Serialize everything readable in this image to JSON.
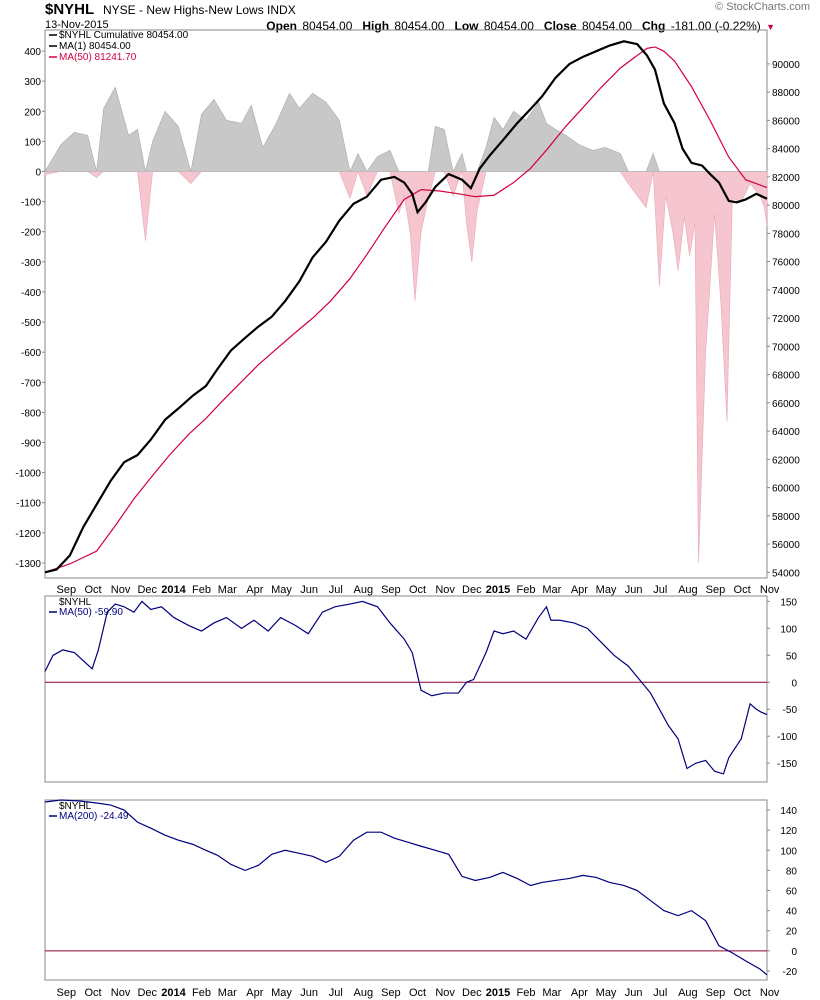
{
  "header": {
    "symbol": "$NYHL",
    "name": "NYSE - New Highs-New Lows INDX",
    "date": "13-Nov-2015",
    "watermark": "© StockCharts.com",
    "open_label": "Open",
    "open": "80454.00",
    "high_label": "High",
    "high": "80454.00",
    "low_label": "Low",
    "low": "80454.00",
    "close_label": "Close",
    "close": "80454.00",
    "chg_label": "Chg",
    "chg": "-181.00 (-0.22%)"
  },
  "colors": {
    "black_line": "#000000",
    "red_line": "#d4003c",
    "blue_line": "#00007f",
    "zero_line": "#8b0033",
    "pos_fill": "#c8c8c8",
    "neg_fill": "#f5c6cf",
    "down_arrow": "#d4003c"
  },
  "x_axis": {
    "labels": [
      "Sep",
      "Oct",
      "Nov",
      "Dec",
      "2014",
      "Feb",
      "Mar",
      "Apr",
      "May",
      "Jun",
      "Jul",
      "Aug",
      "Sep",
      "Oct",
      "Nov",
      "Dec",
      "2015",
      "Feb",
      "Mar",
      "Apr",
      "May",
      "Jun",
      "Jul",
      "Aug",
      "Sep",
      "Oct",
      "Nov"
    ],
    "bold_labels": [
      "2014",
      "2015"
    ],
    "start": "2013-08-23",
    "end": "2015-11-13"
  },
  "chart_data": [
    {
      "type": "line",
      "panel": "main",
      "legend": [
        "$NYHL Cumulative 80454.00",
        "MA(1) 80454.00",
        "MA(50) 81241.70"
      ],
      "ylim_left": [
        -1350,
        470
      ],
      "ylim_right": [
        53600,
        92400
      ],
      "yticks_left": [
        -1300,
        -1200,
        -1100,
        -1000,
        -900,
        -800,
        -700,
        -600,
        -500,
        -400,
        -300,
        -200,
        -100,
        0,
        100,
        200,
        300,
        400
      ],
      "yticks_right": [
        54000,
        56000,
        58000,
        60000,
        62000,
        64000,
        66000,
        68000,
        70000,
        72000,
        74000,
        76000,
        78000,
        80000,
        82000,
        84000,
        86000,
        88000,
        90000
      ],
      "series": [
        {
          "name": "$NYHL Cumulative",
          "axis": "right",
          "x": [
            "2013-08-23",
            "2013-09-05",
            "2013-09-20",
            "2013-10-05",
            "2013-10-20",
            "2013-11-05",
            "2013-11-20",
            "2013-12-05",
            "2013-12-20",
            "2014-01-05",
            "2014-01-20",
            "2014-02-05",
            "2014-02-20",
            "2014-03-05",
            "2014-03-20",
            "2014-04-05",
            "2014-04-20",
            "2014-05-05",
            "2014-05-20",
            "2014-06-05",
            "2014-06-20",
            "2014-07-05",
            "2014-07-20",
            "2014-08-05",
            "2014-08-20",
            "2014-09-05",
            "2014-09-20",
            "2014-10-01",
            "2014-10-10",
            "2014-10-16",
            "2014-10-25",
            "2014-11-05",
            "2014-11-20",
            "2014-12-05",
            "2014-12-15",
            "2014-12-25",
            "2015-01-05",
            "2015-01-20",
            "2015-02-05",
            "2015-02-20",
            "2015-03-05",
            "2015-03-20",
            "2015-04-05",
            "2015-04-20",
            "2015-05-05",
            "2015-05-20",
            "2015-06-05",
            "2015-06-20",
            "2015-07-01",
            "2015-07-10",
            "2015-07-20",
            "2015-08-01",
            "2015-08-10",
            "2015-08-20",
            "2015-09-01",
            "2015-09-10",
            "2015-09-20",
            "2015-10-01",
            "2015-10-10",
            "2015-10-20",
            "2015-11-01",
            "2015-11-13"
          ],
          "y": [
            54000,
            54200,
            55200,
            57200,
            58800,
            60500,
            61800,
            62300,
            63400,
            64800,
            65600,
            66500,
            67200,
            68400,
            69700,
            70600,
            71400,
            72100,
            73200,
            74600,
            76300,
            77400,
            78900,
            80100,
            80600,
            81800,
            82000,
            81600,
            80800,
            79500,
            80200,
            81300,
            82200,
            81800,
            81200,
            82600,
            83500,
            84600,
            85800,
            86800,
            87700,
            89000,
            90000,
            90500,
            90900,
            91300,
            91600,
            91400,
            90600,
            89600,
            87200,
            85800,
            84000,
            83000,
            82800,
            82200,
            81600,
            80300,
            80200,
            80400,
            80800,
            80454
          ]
        },
        {
          "name": "MA(50)",
          "axis": "right",
          "x": [
            "2013-08-23",
            "2013-09-20",
            "2013-10-20",
            "2013-11-10",
            "2013-12-01",
            "2013-12-20",
            "2014-01-10",
            "2014-02-01",
            "2014-02-20",
            "2014-03-10",
            "2014-04-01",
            "2014-04-20",
            "2014-05-10",
            "2014-06-01",
            "2014-06-20",
            "2014-07-10",
            "2014-08-01",
            "2014-08-20",
            "2014-09-10",
            "2014-10-01",
            "2014-10-20",
            "2014-11-10",
            "2014-12-01",
            "2014-12-20",
            "2015-01-10",
            "2015-02-01",
            "2015-02-20",
            "2015-03-10",
            "2015-04-01",
            "2015-04-20",
            "2015-05-10",
            "2015-06-01",
            "2015-06-20",
            "2015-07-01",
            "2015-07-10",
            "2015-07-20",
            "2015-08-01",
            "2015-08-20",
            "2015-09-10",
            "2015-10-01",
            "2015-10-20",
            "2015-11-13"
          ],
          "y": [
            54000,
            54600,
            55500,
            57300,
            59200,
            60700,
            62300,
            63800,
            64900,
            66100,
            67500,
            68700,
            69800,
            71000,
            72000,
            73200,
            74800,
            76500,
            78500,
            80400,
            81100,
            81000,
            80800,
            80600,
            80700,
            81600,
            82600,
            83900,
            85600,
            86900,
            88300,
            89700,
            90600,
            91100,
            91200,
            90900,
            90200,
            88400,
            86000,
            83400,
            81800,
            81242
          ]
        }
      ],
      "histogram": {
        "name": "$NYHL",
        "axis": "left",
        "x": [
          "2013-08-23",
          "2013-09-10",
          "2013-09-25",
          "2013-10-10",
          "2013-10-20",
          "2013-10-28",
          "2013-11-10",
          "2013-11-25",
          "2013-12-05",
          "2013-12-14",
          "2013-12-22",
          "2014-01-05",
          "2014-01-20",
          "2014-02-03",
          "2014-02-15",
          "2014-03-01",
          "2014-03-15",
          "2014-04-01",
          "2014-04-12",
          "2014-04-25",
          "2014-05-10",
          "2014-05-25",
          "2014-06-05",
          "2014-06-20",
          "2014-07-05",
          "2014-07-20",
          "2014-08-01",
          "2014-08-10",
          "2014-08-20",
          "2014-09-01",
          "2014-09-15",
          "2014-09-25",
          "2014-10-01",
          "2014-10-08",
          "2014-10-13",
          "2014-10-20",
          "2014-10-28",
          "2014-11-05",
          "2014-11-15",
          "2014-11-25",
          "2014-12-05",
          "2014-12-10",
          "2014-12-16",
          "2014-12-22",
          "2015-01-01",
          "2015-01-10",
          "2015-01-20",
          "2015-02-01",
          "2015-02-15",
          "2015-03-01",
          "2015-03-10",
          "2015-03-20",
          "2015-04-01",
          "2015-04-15",
          "2015-05-01",
          "2015-05-15",
          "2015-06-01",
          "2015-06-10",
          "2015-06-20",
          "2015-06-30",
          "2015-07-08",
          "2015-07-15",
          "2015-07-22",
          "2015-07-30",
          "2015-08-05",
          "2015-08-12",
          "2015-08-18",
          "2015-08-24",
          "2015-08-28",
          "2015-09-05",
          "2015-09-15",
          "2015-09-22",
          "2015-09-29",
          "2015-10-05",
          "2015-10-15",
          "2015-10-25",
          "2015-11-05",
          "2015-11-10",
          "2015-11-13"
        ],
        "y": [
          -10,
          90,
          130,
          120,
          -20,
          210,
          280,
          120,
          140,
          -230,
          100,
          200,
          150,
          -40,
          190,
          240,
          170,
          160,
          220,
          80,
          160,
          260,
          210,
          260,
          230,
          170,
          -90,
          60,
          -80,
          50,
          70,
          -140,
          -80,
          -210,
          -430,
          -200,
          -90,
          150,
          140,
          -80,
          60,
          -170,
          -300,
          -130,
          80,
          180,
          140,
          200,
          170,
          230,
          160,
          140,
          120,
          90,
          70,
          80,
          60,
          -40,
          -80,
          -120,
          60,
          -380,
          -80,
          -200,
          -330,
          -150,
          -280,
          -170,
          -1300,
          -600,
          -140,
          -430,
          -830,
          -90,
          -100,
          -40,
          -80,
          -120,
          -181
        ]
      }
    },
    {
      "type": "line",
      "panel": "middle",
      "legend_title": "$NYHL",
      "legend": [
        "MA(50) -59.90"
      ],
      "ylim": [
        -185,
        160
      ],
      "yticks": [
        -150,
        -100,
        -50,
        0,
        50,
        100,
        150
      ],
      "series": [
        {
          "name": "MA(50)",
          "x": [
            "2013-08-23",
            "2013-09-01",
            "2013-09-12",
            "2013-09-25",
            "2013-10-05",
            "2013-10-15",
            "2013-10-22",
            "2013-11-01",
            "2013-11-10",
            "2013-11-20",
            "2013-12-01",
            "2013-12-10",
            "2013-12-20",
            "2014-01-01",
            "2014-01-15",
            "2014-02-01",
            "2014-02-15",
            "2014-03-01",
            "2014-03-15",
            "2014-04-01",
            "2014-04-15",
            "2014-05-01",
            "2014-05-15",
            "2014-06-01",
            "2014-06-15",
            "2014-07-01",
            "2014-07-15",
            "2014-08-01",
            "2014-08-15",
            "2014-09-01",
            "2014-09-15",
            "2014-10-01",
            "2014-10-10",
            "2014-10-20",
            "2014-11-01",
            "2014-11-15",
            "2014-12-01",
            "2014-12-10",
            "2014-12-18",
            "2015-01-01",
            "2015-01-10",
            "2015-01-20",
            "2015-02-01",
            "2015-02-15",
            "2015-03-01",
            "2015-03-10",
            "2015-03-15",
            "2015-03-25",
            "2015-04-10",
            "2015-04-25",
            "2015-05-10",
            "2015-05-25",
            "2015-06-10",
            "2015-06-25",
            "2015-07-05",
            "2015-07-15",
            "2015-07-25",
            "2015-08-05",
            "2015-08-15",
            "2015-08-25",
            "2015-09-05",
            "2015-09-15",
            "2015-09-25",
            "2015-10-01",
            "2015-10-05",
            "2015-10-15",
            "2015-10-25",
            "2015-11-01",
            "2015-11-06",
            "2015-11-13"
          ],
          "y": [
            20,
            50,
            60,
            55,
            40,
            25,
            60,
            130,
            145,
            140,
            130,
            150,
            135,
            140,
            120,
            105,
            95,
            110,
            120,
            100,
            115,
            95,
            120,
            105,
            90,
            130,
            140,
            145,
            150,
            140,
            110,
            80,
            55,
            -15,
            -25,
            -20,
            -20,
            0,
            5,
            55,
            95,
            90,
            95,
            80,
            120,
            140,
            115,
            115,
            110,
            100,
            75,
            50,
            30,
            0,
            -20,
            -50,
            -80,
            -105,
            -160,
            -150,
            -145,
            -165,
            -170,
            -140,
            -130,
            -105,
            -40,
            -50,
            -55,
            -60
          ]
        }
      ]
    },
    {
      "type": "line",
      "panel": "bottom",
      "legend_title": "$NYHL",
      "legend": [
        "MA(200) -24.49"
      ],
      "ylim": [
        -29,
        150
      ],
      "yticks": [
        -20,
        0,
        20,
        40,
        60,
        80,
        100,
        120,
        140
      ],
      "series": [
        {
          "name": "MA(200)",
          "x": [
            "2013-08-23",
            "2013-09-10",
            "2013-10-01",
            "2013-10-20",
            "2013-11-05",
            "2013-11-20",
            "2013-12-05",
            "2013-12-20",
            "2014-01-05",
            "2014-01-20",
            "2014-02-05",
            "2014-02-20",
            "2014-03-05",
            "2014-03-20",
            "2014-04-05",
            "2014-04-20",
            "2014-05-05",
            "2014-05-20",
            "2014-06-05",
            "2014-06-20",
            "2014-07-05",
            "2014-07-20",
            "2014-08-05",
            "2014-08-20",
            "2014-09-05",
            "2014-09-20",
            "2014-10-05",
            "2014-10-20",
            "2014-11-05",
            "2014-11-20",
            "2014-12-05",
            "2014-12-20",
            "2015-01-05",
            "2015-01-20",
            "2015-02-05",
            "2015-02-20",
            "2015-03-05",
            "2015-03-20",
            "2015-04-05",
            "2015-04-20",
            "2015-05-05",
            "2015-05-20",
            "2015-06-05",
            "2015-06-20",
            "2015-07-05",
            "2015-07-20",
            "2015-08-05",
            "2015-08-20",
            "2015-09-05",
            "2015-09-20",
            "2015-10-05",
            "2015-10-20",
            "2015-11-05",
            "2015-11-13"
          ],
          "y": [
            148,
            150,
            149,
            147,
            145,
            140,
            128,
            122,
            115,
            110,
            106,
            100,
            95,
            86,
            80,
            85,
            96,
            100,
            97,
            94,
            88,
            94,
            110,
            118,
            118,
            112,
            108,
            104,
            100,
            96,
            74,
            70,
            73,
            78,
            72,
            65,
            68,
            70,
            72,
            75,
            73,
            68,
            65,
            60,
            50,
            40,
            35,
            40,
            30,
            5,
            -2,
            -10,
            -18,
            -24
          ]
        }
      ]
    }
  ]
}
